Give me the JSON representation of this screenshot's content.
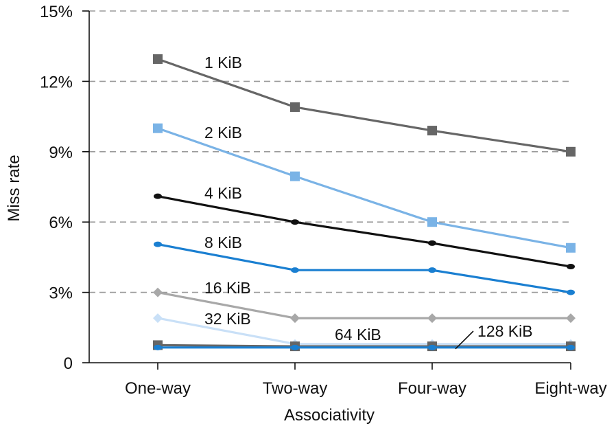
{
  "chart_data": {
    "type": "line",
    "xlabel": "Associativity",
    "ylabel": "Miss rate",
    "categories": [
      "One-way",
      "Two-way",
      "Four-way",
      "Eight-way"
    ],
    "ylim": [
      0,
      15
    ],
    "yticks": [
      {
        "value": 0,
        "label": "0"
      },
      {
        "value": 3,
        "label": "3%"
      },
      {
        "value": 6,
        "label": "6%"
      },
      {
        "value": 9,
        "label": "9%"
      },
      {
        "value": 12,
        "label": "12%"
      },
      {
        "value": 15,
        "label": "15%"
      }
    ],
    "grid": true,
    "series": [
      {
        "name": "1 KiB",
        "values": [
          12.95,
          10.9,
          9.9,
          9.0
        ],
        "color": "#666666",
        "marker": "square"
      },
      {
        "name": "2 KiB",
        "values": [
          10.0,
          7.95,
          6.0,
          4.9
        ],
        "color": "#7ab3e6",
        "marker": "square"
      },
      {
        "name": "4 KiB",
        "values": [
          7.1,
          6.0,
          5.1,
          4.1
        ],
        "color": "#111111",
        "marker": "dot"
      },
      {
        "name": "8 KiB",
        "values": [
          5.05,
          3.95,
          3.95,
          3.0
        ],
        "color": "#1a7fd1",
        "marker": "dot"
      },
      {
        "name": "16 KiB",
        "values": [
          3.0,
          1.9,
          1.9,
          1.9
        ],
        "color": "#a8a8a8",
        "marker": "diamond"
      },
      {
        "name": "32 KiB",
        "values": [
          1.9,
          0.8,
          0.8,
          0.8
        ],
        "color": "#c9e0f7",
        "marker": "diamond"
      },
      {
        "name": "64 KiB",
        "values": [
          0.75,
          0.7,
          0.7,
          0.7
        ],
        "color": "#666666",
        "marker": "square"
      },
      {
        "name": "128 KiB",
        "values": [
          0.65,
          0.65,
          0.65,
          0.65
        ],
        "color": "#1a7fd1",
        "marker": "dot"
      }
    ]
  }
}
